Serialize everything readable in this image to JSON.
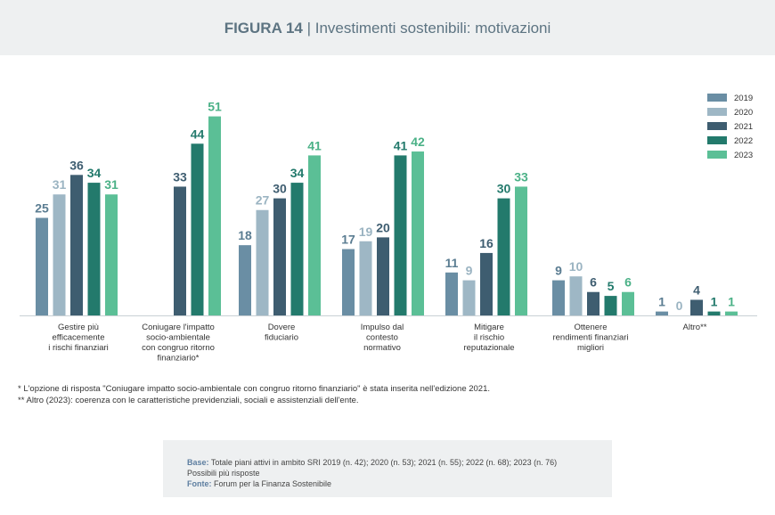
{
  "header": {
    "figure_label": "FIGURA 14",
    "separator": " | ",
    "title": "Investimenti sostenibili: motivazioni"
  },
  "chart_data": {
    "type": "bar",
    "categories": [
      [
        "Gestire più",
        "efficacemente",
        "i rischi finanziari"
      ],
      [
        "Coniugare l'impatto",
        "socio-ambientale",
        "con congruo ritorno",
        "finanziario*"
      ],
      [
        "Dovere",
        "fiduciario"
      ],
      [
        "Impulso dal",
        "contesto",
        "normativo"
      ],
      [
        "Mitigare",
        "il rischio",
        "reputazionale"
      ],
      [
        "Ottenere",
        "rendimenti finanziari",
        "migliori"
      ],
      [
        "Altro**"
      ]
    ],
    "series": [
      {
        "name": "2019",
        "color": "#6a8ea4",
        "label_color": "#5b7d92",
        "values": [
          25,
          null,
          18,
          17,
          11,
          9,
          1
        ]
      },
      {
        "name": "2020",
        "color": "#9eb7c5",
        "label_color": "#9bb4c2",
        "values": [
          31,
          null,
          27,
          19,
          9,
          10,
          0
        ]
      },
      {
        "name": "2021",
        "color": "#3e5d70",
        "label_color": "#3e5d70",
        "values": [
          36,
          33,
          30,
          20,
          16,
          6,
          4
        ]
      },
      {
        "name": "2022",
        "color": "#237a6c",
        "label_color": "#237a6c",
        "values": [
          34,
          44,
          34,
          41,
          30,
          5,
          1
        ]
      },
      {
        "name": "2023",
        "color": "#5bbf96",
        "label_color": "#4bb187",
        "values": [
          31,
          51,
          41,
          42,
          33,
          6,
          1
        ]
      }
    ],
    "ylim": [
      0,
      55
    ],
    "legend_position": "top-right",
    "grid": false
  },
  "footnotes": [
    "* L'opzione di risposta \"Coniugare impatto socio-ambientale con congruo ritorno finanziario\" è stata inserita nell'edizione 2021.",
    "** Altro (2023): coerenza con le caratteristiche previdenziali, sociali e assistenziali dell'ente."
  ],
  "source": {
    "base_label": "Base:",
    "base_text": " Totale piani attivi in ambito SRI 2019 (n. 42); 2020 (n. 53); 2021 (n. 55); 2022 (n. 68); 2023 (n. 76)",
    "note": "Possibili più risposte",
    "fonte_label": "Fonte:",
    "fonte_text": " Forum per la Finanza Sostenibile"
  }
}
